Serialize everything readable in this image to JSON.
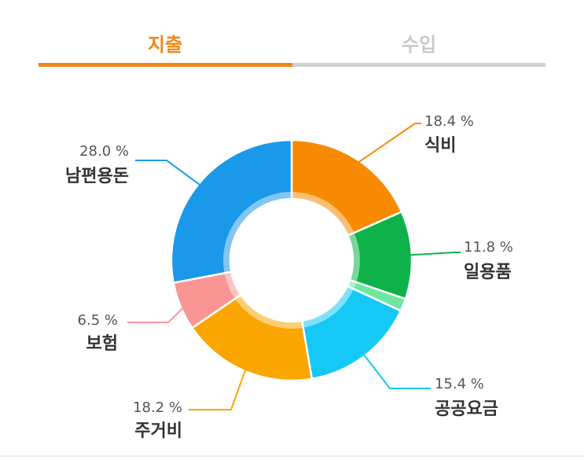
{
  "tabs": [
    {
      "label": "지출",
      "active": true
    },
    {
      "label": "수입",
      "active": false
    }
  ],
  "colors": {
    "accent": "#f0871a",
    "inactive_tab": "#c8c8c8"
  },
  "chart_data": {
    "type": "pie",
    "donut": true,
    "categories": [
      "식비",
      "일용품",
      "",
      "공공요금",
      "주거비",
      "보험",
      "남편용돈"
    ],
    "values": [
      18.4,
      11.8,
      1.7,
      15.4,
      18.2,
      6.5,
      28.0
    ],
    "labels": [
      "18.4 %",
      "11.8 %",
      "",
      "15.4 %",
      "18.2 %",
      "6.5 %",
      "28.0 %"
    ],
    "colors": [
      "#f78a00",
      "#0db34a",
      "#6ee6a0",
      "#16c8f5",
      "#fba600",
      "#fa9593",
      "#1a98ea"
    ]
  }
}
